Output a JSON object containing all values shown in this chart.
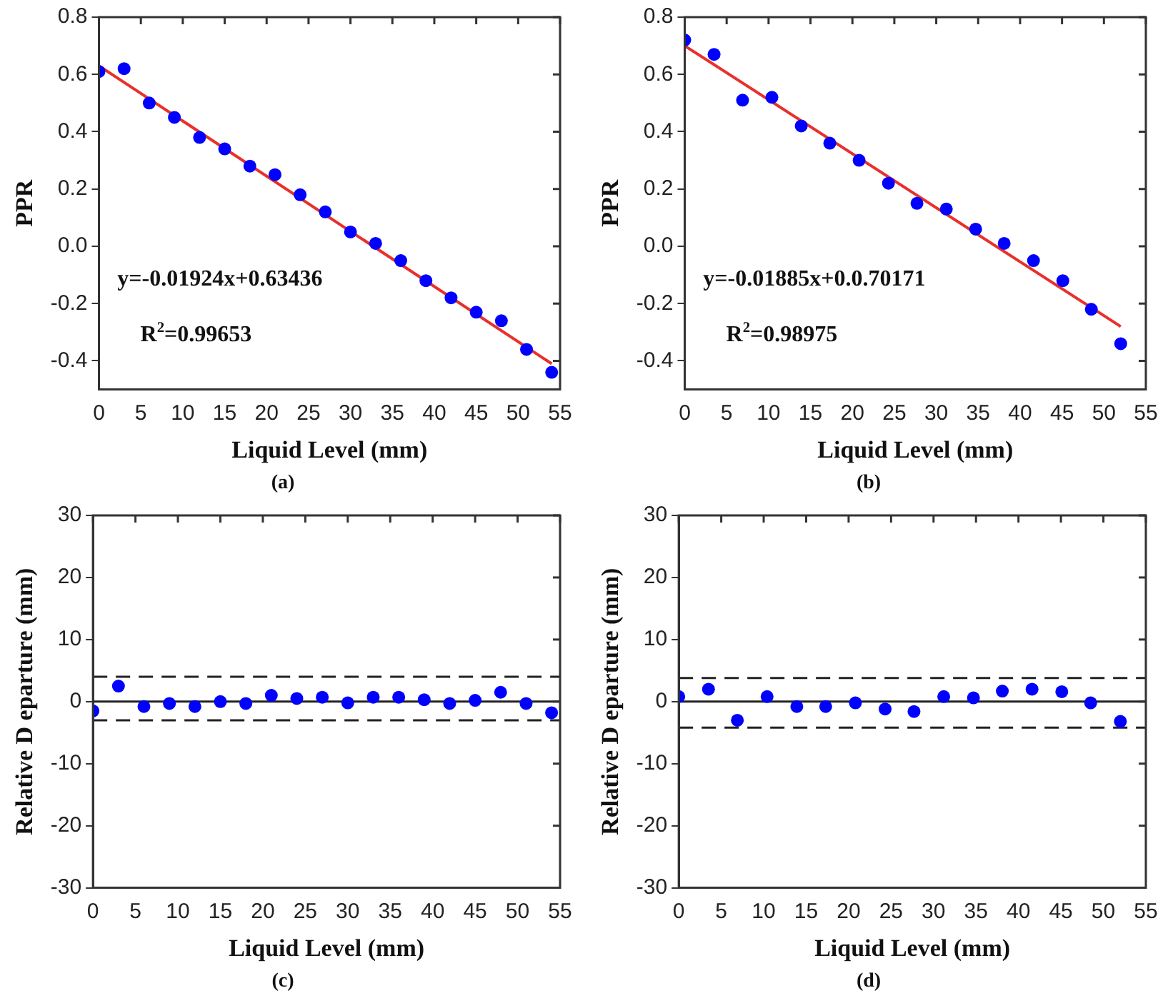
{
  "chart_data": [
    {
      "type": "scatter",
      "title": "(a)",
      "xlabel": "Liquid Level (mm)",
      "ylabel": "PPR",
      "xlim": [
        0,
        55
      ],
      "xticks": [
        0,
        5,
        10,
        15,
        20,
        25,
        30,
        35,
        40,
        45,
        50,
        55
      ],
      "ylim": [
        -0.5,
        0.8
      ],
      "yticks": [
        -0.4,
        -0.2,
        {
          "value": 0,
          "label": "0.0"
        },
        0.2,
        0.4,
        0.6,
        0.8
      ],
      "annotations": [
        "y=-0.01924x+0.63436",
        "R$^{2}$=0.99653"
      ],
      "series": [
        {
          "type": "scatter",
          "marker": "circle",
          "color": "#0000ff",
          "x": [
            0,
            3,
            6,
            9,
            12,
            15,
            18,
            21,
            24,
            27,
            30,
            33,
            36,
            39,
            42,
            45,
            48,
            51,
            54
          ],
          "values": [
            0.61,
            0.62,
            0.5,
            0.45,
            0.38,
            0.34,
            0.28,
            0.25,
            0.18,
            0.12,
            0.05,
            0.01,
            -0.05,
            -0.12,
            -0.18,
            -0.23,
            -0.26,
            -0.36,
            -0.44
          ]
        },
        {
          "type": "line",
          "marker": "none",
          "color": "#e8302c",
          "x": [
            0,
            54
          ],
          "values": [
            0.63,
            -0.41
          ]
        }
      ]
    },
    {
      "type": "scatter",
      "title": "(b)",
      "xlabel": "Liquid Level (mm)",
      "ylabel": "PPR",
      "xlim": [
        0,
        55
      ],
      "xticks": [
        0,
        5,
        10,
        15,
        20,
        25,
        30,
        35,
        40,
        45,
        50,
        55
      ],
      "ylim": [
        -0.5,
        0.8
      ],
      "yticks": [
        -0.4,
        -0.2,
        {
          "value": 0,
          "label": "0.0"
        },
        0.2,
        0.4,
        0.6,
        0.8
      ],
      "annotations": [
        "y=-0.01885x+0.0.70171",
        "R$^{2}$=0.98975"
      ],
      "series": [
        {
          "type": "scatter",
          "marker": "circle",
          "color": "#0000ff",
          "x": [
            0,
            3.5,
            6.9,
            10.4,
            13.9,
            17.3,
            20.8,
            24.3,
            27.7,
            31.2,
            34.7,
            38.1,
            41.6,
            45.1,
            48.5,
            52
          ],
          "values": [
            0.72,
            0.67,
            0.51,
            0.52,
            0.42,
            0.36,
            0.3,
            0.22,
            0.15,
            0.13,
            0.06,
            0.01,
            -0.05,
            -0.12,
            -0.22,
            -0.34
          ]
        },
        {
          "type": "line",
          "marker": "none",
          "color": "#e8302c",
          "x": [
            0,
            52
          ],
          "values": [
            0.7,
            -0.28
          ]
        }
      ]
    },
    {
      "type": "scatter",
      "title": "(c)",
      "xlabel": "Liquid Level (mm)",
      "ylabel": "Relative D eparture (mm)",
      "xlim": [
        0,
        55
      ],
      "xticks": [
        0,
        5,
        10,
        15,
        20,
        25,
        30,
        35,
        40,
        45,
        50,
        55
      ],
      "ylim": [
        -30,
        30
      ],
      "yticks": [
        -30,
        -20,
        -10,
        0,
        10,
        20,
        30
      ],
      "ref_lines": [
        {
          "axis": "y",
          "value": 4,
          "line_style": "dashed",
          "color": "#222222"
        },
        {
          "axis": "y",
          "value": -3,
          "line_style": "dashed",
          "color": "#222222"
        },
        {
          "axis": "y",
          "value": 0,
          "line_style": "solid",
          "color": "#222222"
        }
      ],
      "series": [
        {
          "type": "scatter",
          "marker": "circle",
          "color": "#0000ff",
          "x": [
            0,
            3,
            6,
            9,
            12,
            15,
            18,
            21,
            24,
            27,
            30,
            33,
            36,
            39,
            42,
            45,
            48,
            51,
            54
          ],
          "values": [
            -1.5,
            2.5,
            -0.8,
            -0.3,
            -0.8,
            0,
            -0.3,
            1,
            0.5,
            0.7,
            -0.2,
            0.7,
            0.7,
            0.3,
            -0.3,
            0.2,
            1.5,
            -0.3,
            -1.8
          ]
        }
      ]
    },
    {
      "type": "scatter",
      "title": "(d)",
      "xlabel": "Liquid Level (mm)",
      "ylabel": "Relative D eparture (mm)",
      "xlim": [
        0,
        55
      ],
      "xticks": [
        0,
        5,
        10,
        15,
        20,
        25,
        30,
        35,
        40,
        45,
        50,
        55
      ],
      "ylim": [
        -30,
        30
      ],
      "yticks": [
        -30,
        -20,
        -10,
        0,
        10,
        20,
        30
      ],
      "ref_lines": [
        {
          "axis": "y",
          "value": 3.8,
          "line_style": "dashed",
          "color": "#222222"
        },
        {
          "axis": "y",
          "value": -4.2,
          "line_style": "dashed",
          "color": "#222222"
        },
        {
          "axis": "y",
          "value": 0,
          "line_style": "solid",
          "color": "#222222"
        }
      ],
      "series": [
        {
          "type": "scatter",
          "marker": "circle",
          "color": "#0000ff",
          "x": [
            0,
            3.5,
            6.9,
            10.4,
            13.9,
            17.3,
            20.8,
            24.3,
            27.7,
            31.2,
            34.7,
            38.1,
            41.6,
            45.1,
            48.5,
            52
          ],
          "values": [
            0.8,
            2,
            -3,
            0.8,
            -0.8,
            -0.8,
            -0.2,
            -1.2,
            -1.6,
            0.8,
            0.6,
            1.7,
            2,
            1.6,
            -0.2,
            -3.2
          ]
        }
      ]
    }
  ]
}
